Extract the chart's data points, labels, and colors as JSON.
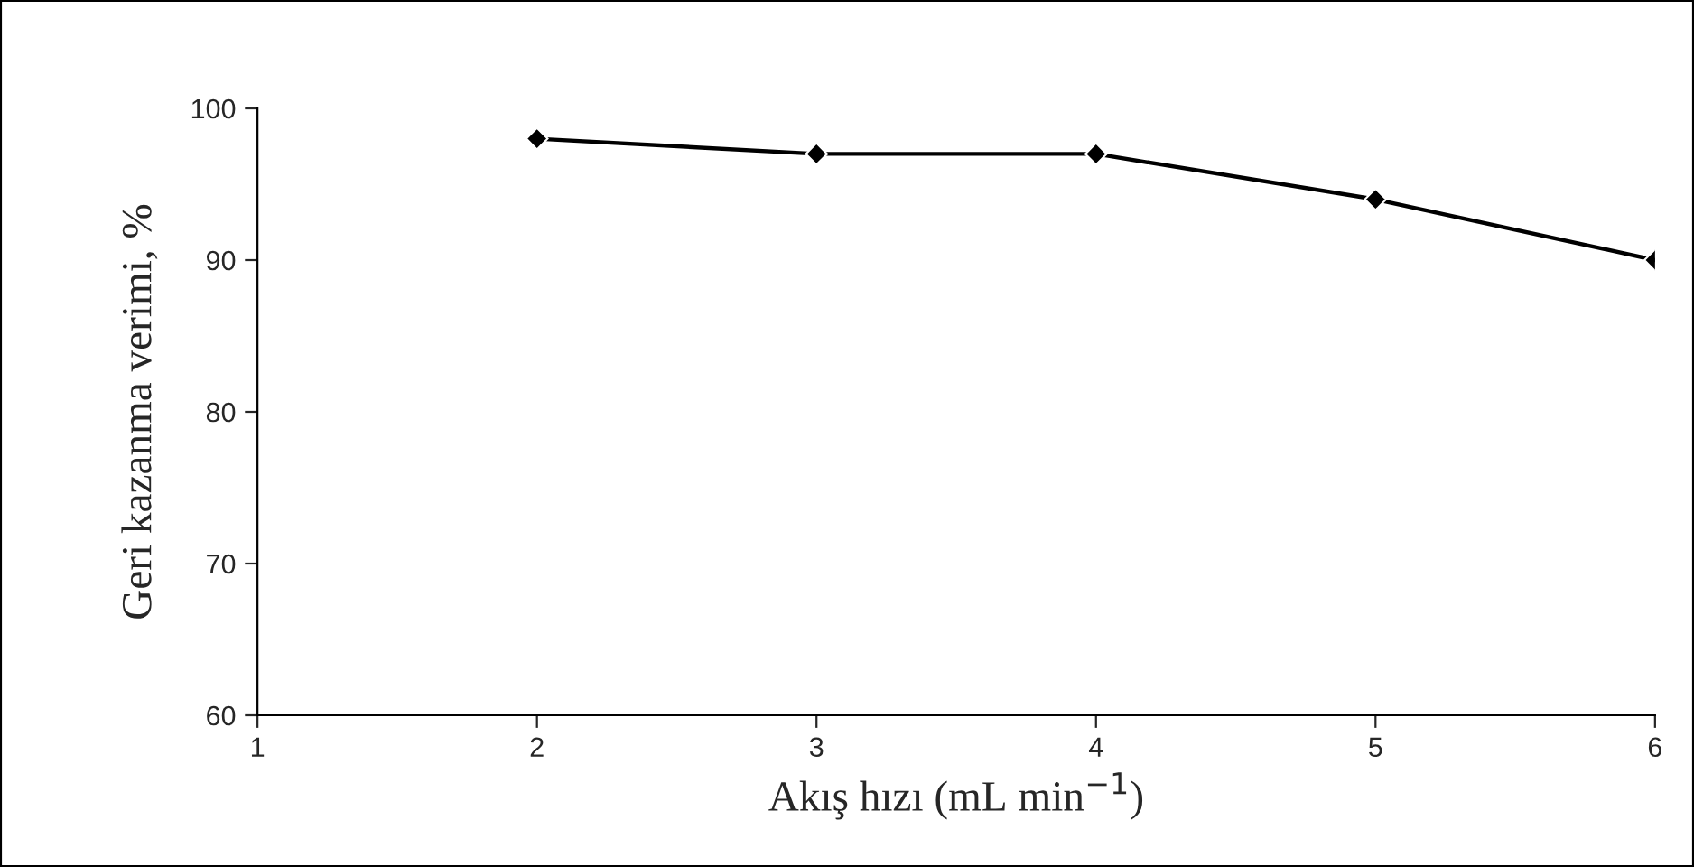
{
  "chart_data": {
    "type": "line",
    "xlabel": "Akış hızı (mL min$^{−1}$)",
    "ylabel": "Geri kazanma verimi, %",
    "x": [
      2,
      3,
      4,
      5,
      6
    ],
    "series": [
      {
        "color": "#000000",
        "values": [
          98,
          97,
          97,
          94,
          90
        ]
      }
    ],
    "xlim": [
      1,
      6
    ],
    "xticks": [
      1,
      2,
      3,
      4,
      5,
      6
    ],
    "ylim": [
      60,
      100
    ],
    "yticks": [
      60,
      70,
      80,
      90,
      100
    ],
    "marker": "diamond",
    "line_style": "solid",
    "grid": false,
    "legend": false
  }
}
